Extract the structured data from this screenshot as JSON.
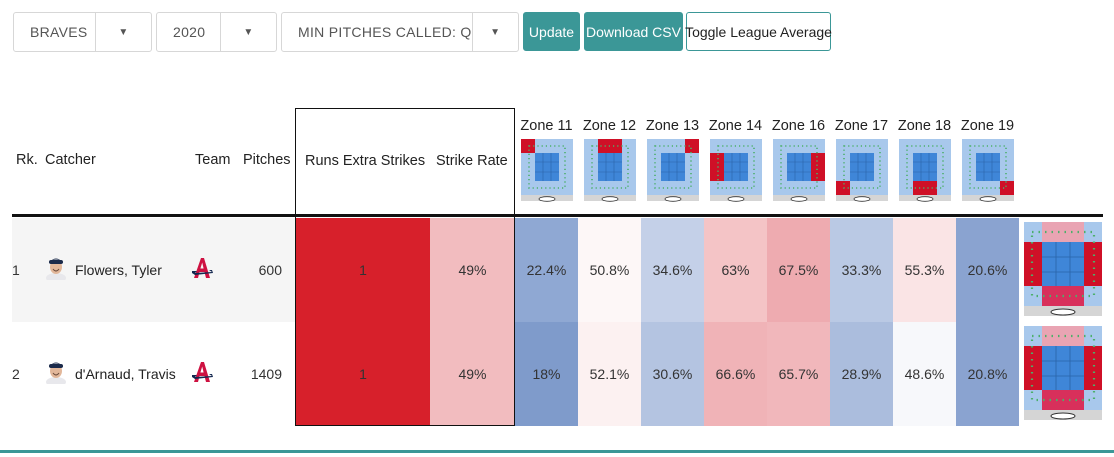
{
  "filters": {
    "team": "BRAVES",
    "season": "2020",
    "min_pitches": "MIN PITCHES CALLED: Q",
    "arrow": "▼"
  },
  "buttons": {
    "update": "Update",
    "download": "Download CSV",
    "toggle": "Toggle League Average"
  },
  "columns": {
    "rank": "Rk.",
    "catcher": "Catcher",
    "team": "Team",
    "pitches": "Pitches",
    "runs_extra_strikes": "Runs Extra Strikes",
    "strike_rate": "Strike Rate"
  },
  "zones": [
    "Zone 11",
    "Zone 12",
    "Zone 13",
    "Zone 14",
    "Zone 16",
    "Zone 17",
    "Zone 18",
    "Zone 19"
  ],
  "colors": {
    "accent": "#3b9797",
    "runs_red": "#d7202b",
    "strike_pink": "#f2bcbf",
    "zone_light_blue": "#a8c8ec",
    "zone_blue": "#3f86d8",
    "zone_red": "#cf1027"
  },
  "rows": [
    {
      "rank": "1",
      "catcher": "Flowers, Tyler",
      "team_icon": "braves-a-logo",
      "pitches": "600",
      "runs_extra_strikes": "1",
      "strike_rate": "49%",
      "zones": [
        {
          "value": "22.4%",
          "bg": "#8fa8d3"
        },
        {
          "value": "50.8%",
          "bg": "#fdf7f7"
        },
        {
          "value": "34.6%",
          "bg": "#c4d0e8"
        },
        {
          "value": "63%",
          "bg": "#f4c4c6"
        },
        {
          "value": "67.5%",
          "bg": "#eeabb0"
        },
        {
          "value": "33.3%",
          "bg": "#bac9e4"
        },
        {
          "value": "55.3%",
          "bg": "#fae4e5"
        },
        {
          "value": "20.6%",
          "bg": "#8aa3d0"
        }
      ]
    },
    {
      "rank": "2",
      "catcher": "d'Arnaud, Travis",
      "team_icon": "braves-a-logo",
      "pitches": "1409",
      "runs_extra_strikes": "1",
      "strike_rate": "49%",
      "zones": [
        {
          "value": "18%",
          "bg": "#7f9bcb"
        },
        {
          "value": "52.1%",
          "bg": "#fcf1f1"
        },
        {
          "value": "30.6%",
          "bg": "#b4c4e1"
        },
        {
          "value": "66.6%",
          "bg": "#f0b3b7"
        },
        {
          "value": "65.7%",
          "bg": "#f1b7bb"
        },
        {
          "value": "28.9%",
          "bg": "#abbddd"
        },
        {
          "value": "48.6%",
          "bg": "#f7f8fb"
        },
        {
          "value": "20.8%",
          "bg": "#8aa3d0"
        }
      ]
    }
  ]
}
